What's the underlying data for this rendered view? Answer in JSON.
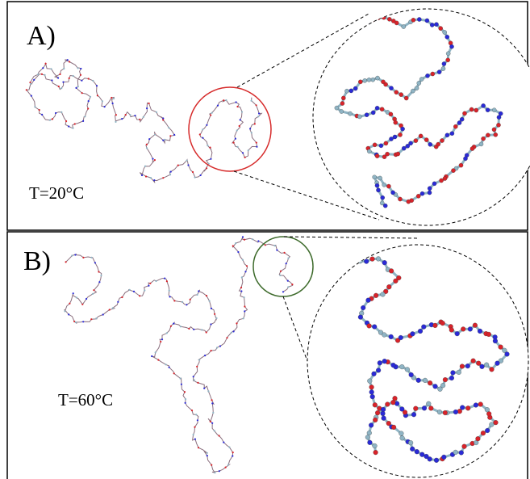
{
  "panels": [
    {
      "label": "A)",
      "temperature": "T=20°C",
      "highlight_color": "#d62a2a"
    },
    {
      "label": "B)",
      "temperature": "T=60°C",
      "highlight_color": "#3e6b2c"
    }
  ],
  "bead_colors": [
    "#d8232a",
    "#2a2ad6",
    "#8fb4c4",
    "#ffffff"
  ]
}
